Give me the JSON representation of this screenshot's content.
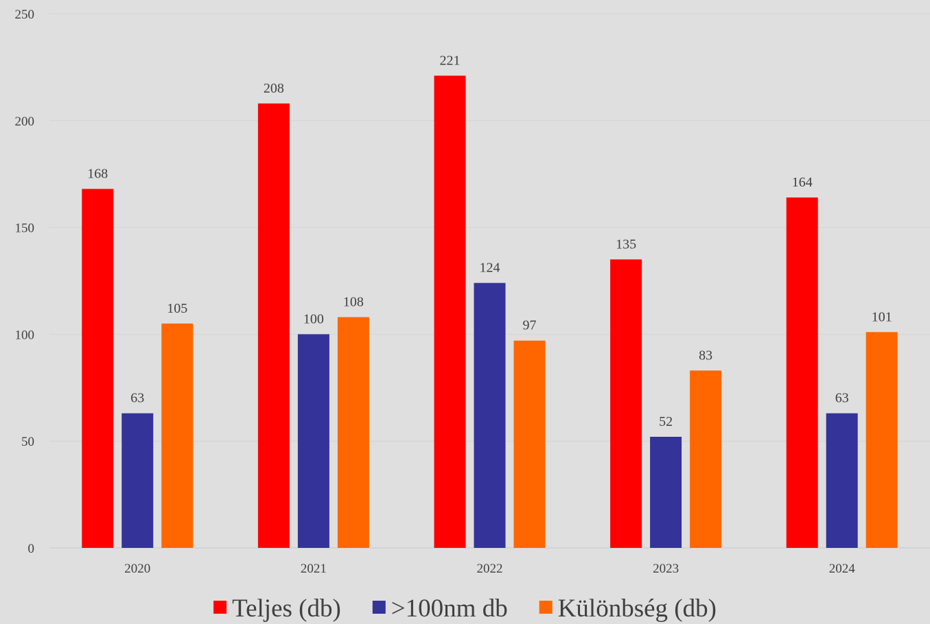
{
  "chart_data": {
    "type": "bar",
    "title": "",
    "xlabel": "",
    "ylabel": "",
    "categories": [
      "2020",
      "2021",
      "2022",
      "2023",
      "2024"
    ],
    "ylim": [
      0,
      250
    ],
    "yticks": [
      0,
      50,
      100,
      150,
      200,
      250
    ],
    "grid": true,
    "legend_position": "bottom",
    "series": [
      {
        "name": "Teljes (db)",
        "color": "#ff0000",
        "values": [
          168,
          208,
          221,
          135,
          164
        ]
      },
      {
        "name": ">100nm db",
        "color": "#333399",
        "values": [
          63,
          100,
          124,
          52,
          63
        ]
      },
      {
        "name": "Különbség (db)",
        "color": "#ff6600",
        "values": [
          105,
          108,
          97,
          83,
          101
        ]
      }
    ]
  }
}
